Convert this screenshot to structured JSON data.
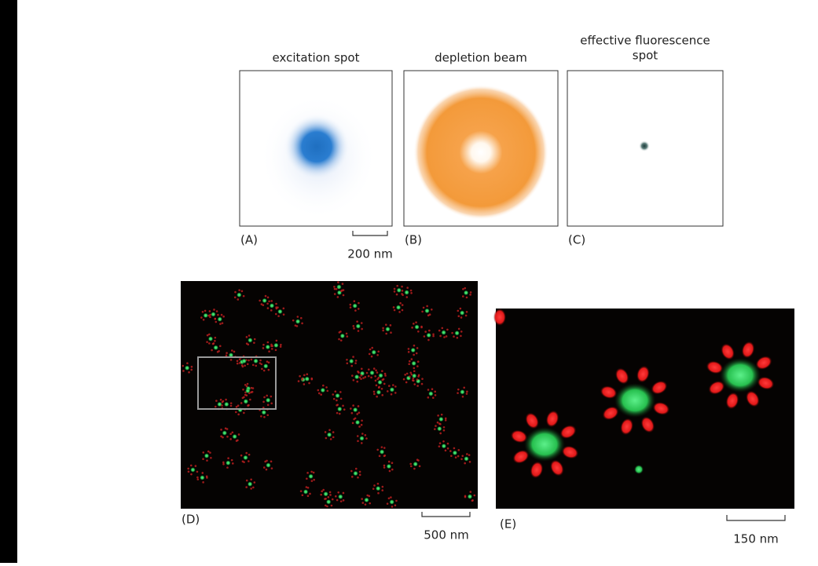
{
  "panels": {
    "a": {
      "title": "excitation spot",
      "label": "(A)",
      "scale": "200 nm"
    },
    "b": {
      "title": "depletion beam",
      "label": "(B)"
    },
    "c": {
      "title_lines": [
        "effective fluorescence",
        "spot"
      ],
      "label": "(C)"
    },
    "d": {
      "label": "(D)",
      "scale": "500 nm"
    },
    "e": {
      "label": "(E)",
      "scale": "150 nm"
    }
  }
}
